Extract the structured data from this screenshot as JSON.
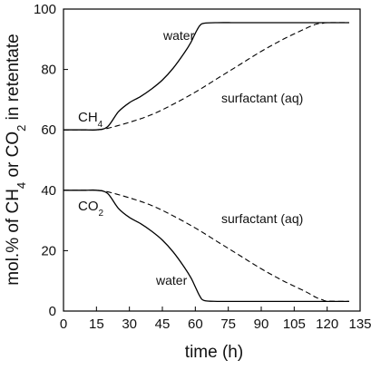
{
  "chart_data": {
    "type": "line",
    "xlabel": "time (h)",
    "ylabel": "mol.% of CH4 or CO2 in retentate",
    "xlim": [
      0,
      135
    ],
    "ylim": [
      0,
      100
    ],
    "xticks": [
      0,
      15,
      30,
      45,
      60,
      75,
      90,
      105,
      120,
      135
    ],
    "yticks": [
      0,
      20,
      40,
      60,
      80,
      100
    ],
    "grid": false,
    "labels": {
      "ch4": "CH4",
      "co2": "CO2",
      "water_top": "water",
      "surf_top": "surfactant (aq)",
      "surf_bottom": "surfactant (aq)",
      "water_bottom": "water"
    },
    "series": [
      {
        "id": "ch4_water",
        "style": "solid",
        "x": [
          0,
          10,
          15,
          20,
          25,
          30,
          35,
          40,
          45,
          50,
          55,
          58,
          60,
          62,
          64,
          70,
          80,
          100,
          130
        ],
        "y": [
          60,
          60,
          60,
          61,
          66,
          69,
          71,
          73.5,
          76.5,
          80.5,
          85.5,
          89,
          92,
          94.5,
          95.3,
          95.5,
          95.5,
          95.5,
          95.5
        ]
      },
      {
        "id": "ch4_surfactant",
        "style": "dashed",
        "x": [
          0,
          10,
          15,
          20,
          30,
          40,
          50,
          60,
          70,
          80,
          90,
          100,
          110,
          115,
          118,
          120,
          130
        ],
        "y": [
          60,
          60,
          60,
          60.5,
          62.5,
          65,
          68.5,
          72.5,
          77,
          81.5,
          86,
          90,
          93.5,
          95,
          95.3,
          95.5,
          95.5
        ]
      },
      {
        "id": "co2_water",
        "style": "solid",
        "x": [
          0,
          10,
          15,
          20,
          25,
          30,
          35,
          40,
          45,
          50,
          55,
          58,
          60,
          62,
          64,
          70,
          80,
          100,
          130
        ],
        "y": [
          40,
          40,
          40,
          39,
          34,
          31,
          29,
          26.5,
          23.5,
          19.5,
          14.5,
          11,
          8,
          5,
          3.5,
          3.2,
          3.2,
          3.2,
          3.2
        ]
      },
      {
        "id": "co2_surfactant",
        "style": "dashed",
        "x": [
          0,
          10,
          15,
          20,
          30,
          40,
          50,
          60,
          70,
          80,
          90,
          100,
          110,
          115,
          118,
          120,
          130
        ],
        "y": [
          40,
          40,
          40,
          39.5,
          37.5,
          35,
          31.5,
          27.5,
          23,
          18.5,
          14,
          10,
          6.5,
          4.5,
          3.7,
          3.3,
          3.2
        ]
      }
    ]
  }
}
